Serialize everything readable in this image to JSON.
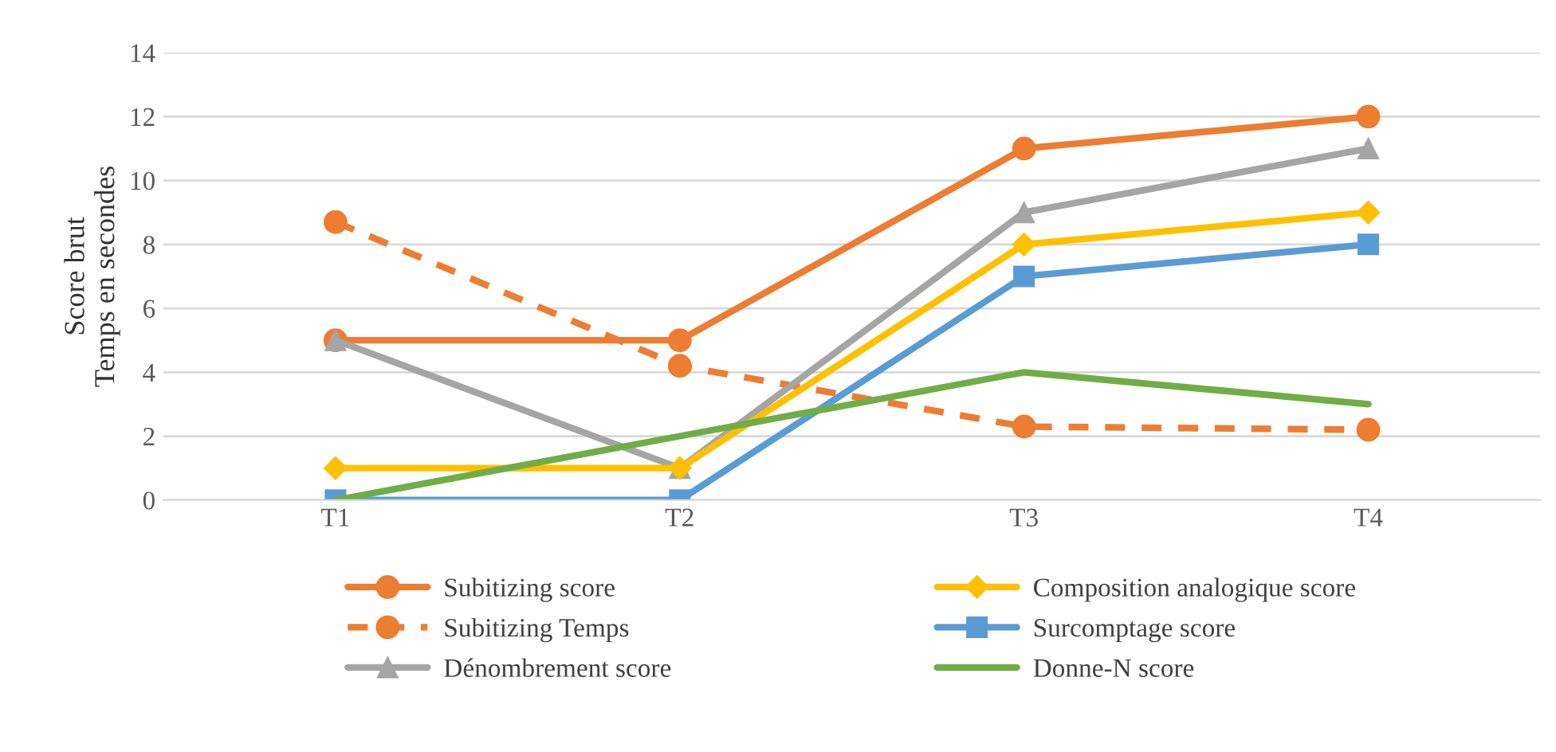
{
  "chart_data": {
    "type": "line",
    "ylabel": "Score brut\nTemps en secondes",
    "categories": [
      "T1",
      "T2",
      "T3",
      "T4"
    ],
    "series": [
      {
        "name": "Subitizing score",
        "color": "#ed7d31",
        "values": [
          5,
          5,
          11,
          12
        ],
        "marker": "circle",
        "line_style": "solid"
      },
      {
        "name": "Subitizing Temps",
        "color": "#ed7d31",
        "values": [
          8.7,
          4.2,
          2.3,
          2.2
        ],
        "marker": "circle",
        "line_style": "dashed"
      },
      {
        "name": "Dénombrement score",
        "color": "#a5a5a5",
        "values": [
          5,
          1,
          9,
          11
        ],
        "marker": "triangle",
        "line_style": "solid"
      },
      {
        "name": "Composition analogique score",
        "color": "#ffc000",
        "values": [
          1,
          1,
          8,
          9
        ],
        "marker": "diamond",
        "line_style": "solid"
      },
      {
        "name": "Surcomptage score",
        "color": "#5b9bd5",
        "values": [
          0,
          0,
          7,
          8
        ],
        "marker": "square",
        "line_style": "solid"
      },
      {
        "name": "Donne-N score",
        "color": "#70ad47",
        "values": [
          0,
          2,
          4,
          3
        ],
        "marker": "none",
        "line_style": "solid"
      }
    ],
    "ylim": [
      0,
      14
    ],
    "yticks": [
      0,
      2,
      4,
      6,
      8,
      10,
      12,
      14
    ],
    "grid": "y",
    "legend": "bottom"
  }
}
